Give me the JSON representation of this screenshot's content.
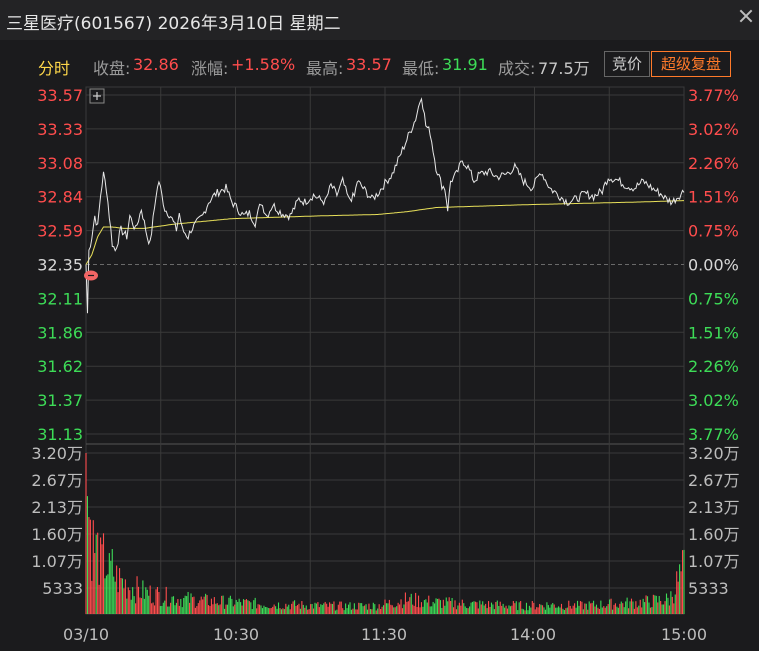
{
  "window": {
    "title": "三星医疗(601567) 2026年3月10日 星期二",
    "close_icon": "close-icon"
  },
  "infobar": {
    "mode_label": "分时",
    "close_label": "收盘:",
    "close_value": "32.86",
    "change_label": "涨幅:",
    "change_value": "+1.58%",
    "high_label": "最高:",
    "high_value": "33.57",
    "low_label": "最低:",
    "low_value": "31.91",
    "volume_label": "成交:",
    "volume_value": "77.5万",
    "auction_button": "竞价",
    "super_replay_button": "超级复盘"
  },
  "colors": {
    "up": "#ff4d4d",
    "down": "#3ddc57",
    "price_line": "#e8e8e8",
    "avg_line": "#e8e05a",
    "grid": "#3a3a3a"
  },
  "chart_data": {
    "type": "line",
    "reference_price": 32.35,
    "price_axis": {
      "range": [
        31.13,
        33.57
      ],
      "left_ticks": [
        "33.57",
        "33.33",
        "33.08",
        "32.84",
        "32.59",
        "32.35",
        "32.11",
        "31.86",
        "31.62",
        "31.37",
        "31.13"
      ],
      "right_ticks": [
        "3.77%",
        "3.02%",
        "2.26%",
        "1.51%",
        "0.75%",
        "0.00%",
        "0.75%",
        "1.51%",
        "2.26%",
        "3.02%",
        "3.77%"
      ]
    },
    "volume_axis": {
      "range": [
        0,
        32000
      ],
      "ticks": [
        "3.20万",
        "2.67万",
        "2.13万",
        "1.60万",
        "1.07万",
        "5333"
      ]
    },
    "time_labels": [
      "03/10",
      "10:30",
      "11:30",
      "14:00",
      "15:00"
    ],
    "price_keypoints": [
      [
        0,
        32.35
      ],
      [
        1,
        32.0
      ],
      [
        2,
        32.45
      ],
      [
        4,
        32.55
      ],
      [
        6,
        32.7
      ],
      [
        8,
        32.62
      ],
      [
        10,
        32.85
      ],
      [
        12,
        33.0
      ],
      [
        14,
        32.9
      ],
      [
        16,
        32.7
      ],
      [
        18,
        32.5
      ],
      [
        20,
        32.45
      ],
      [
        24,
        32.6
      ],
      [
        28,
        32.55
      ],
      [
        30,
        32.7
      ],
      [
        34,
        32.6
      ],
      [
        38,
        32.75
      ],
      [
        42,
        32.55
      ],
      [
        44,
        32.5
      ],
      [
        48,
        32.85
      ],
      [
        50,
        32.95
      ],
      [
        54,
        32.75
      ],
      [
        58,
        32.7
      ],
      [
        62,
        32.6
      ],
      [
        64,
        32.72
      ],
      [
        66,
        32.6
      ],
      [
        70,
        32.55
      ],
      [
        72,
        32.6
      ],
      [
        76,
        32.65
      ],
      [
        80,
        32.7
      ],
      [
        84,
        32.8
      ],
      [
        88,
        32.85
      ],
      [
        92,
        32.88
      ],
      [
        96,
        32.9
      ],
      [
        100,
        32.8
      ],
      [
        104,
        32.75
      ],
      [
        108,
        32.7
      ],
      [
        112,
        32.72
      ],
      [
        116,
        32.65
      ],
      [
        120,
        32.8
      ],
      [
        124,
        32.7
      ],
      [
        128,
        32.78
      ],
      [
        134,
        32.72
      ],
      [
        140,
        32.7
      ],
      [
        146,
        32.82
      ],
      [
        150,
        32.8
      ],
      [
        156,
        32.85
      ],
      [
        160,
        32.82
      ],
      [
        164,
        32.8
      ],
      [
        168,
        32.92
      ],
      [
        172,
        32.85
      ],
      [
        176,
        32.95
      ],
      [
        180,
        32.82
      ],
      [
        184,
        32.84
      ],
      [
        186,
        32.95
      ],
      [
        190,
        32.9
      ],
      [
        196,
        32.82
      ],
      [
        200,
        32.86
      ],
      [
        206,
        32.95
      ],
      [
        210,
        33.0
      ],
      [
        214,
        33.1
      ],
      [
        218,
        33.2
      ],
      [
        222,
        33.3
      ],
      [
        226,
        33.4
      ],
      [
        230,
        33.57
      ],
      [
        233,
        33.35
      ],
      [
        236,
        33.3
      ],
      [
        240,
        33.05
      ],
      [
        244,
        32.92
      ],
      [
        246,
        32.9
      ],
      [
        248,
        32.75
      ],
      [
        250,
        32.95
      ],
      [
        254,
        33.0
      ],
      [
        258,
        33.1
      ],
      [
        262,
        33.05
      ],
      [
        266,
        32.95
      ],
      [
        270,
        33.0
      ],
      [
        276,
        33.02
      ],
      [
        282,
        32.98
      ],
      [
        288,
        33.0
      ],
      [
        294,
        33.05
      ],
      [
        300,
        32.95
      ],
      [
        306,
        32.9
      ],
      [
        312,
        33.02
      ],
      [
        318,
        32.9
      ],
      [
        324,
        32.85
      ],
      [
        330,
        32.8
      ],
      [
        336,
        32.82
      ],
      [
        342,
        32.86
      ],
      [
        348,
        32.84
      ],
      [
        354,
        32.88
      ],
      [
        358,
        32.98
      ],
      [
        364,
        32.96
      ],
      [
        370,
        32.92
      ],
      [
        376,
        32.9
      ],
      [
        382,
        32.95
      ],
      [
        388,
        32.9
      ],
      [
        394,
        32.86
      ],
      [
        398,
        32.82
      ],
      [
        402,
        32.8
      ],
      [
        406,
        32.84
      ],
      [
        410,
        32.88
      ]
    ],
    "avg_keypoints": [
      [
        0,
        32.35
      ],
      [
        4,
        32.42
      ],
      [
        8,
        32.55
      ],
      [
        12,
        32.62
      ],
      [
        18,
        32.62
      ],
      [
        26,
        32.61
      ],
      [
        40,
        32.61
      ],
      [
        60,
        32.64
      ],
      [
        80,
        32.66
      ],
      [
        100,
        32.68
      ],
      [
        130,
        32.69
      ],
      [
        160,
        32.7
      ],
      [
        200,
        32.71
      ],
      [
        220,
        32.73
      ],
      [
        240,
        32.76
      ],
      [
        270,
        32.77
      ],
      [
        300,
        32.78
      ],
      [
        340,
        32.79
      ],
      [
        380,
        32.8
      ],
      [
        410,
        32.81
      ]
    ],
    "volume_keypoints": [
      [
        0,
        32000
      ],
      [
        2,
        25000
      ],
      [
        4,
        18000
      ],
      [
        6,
        16000
      ],
      [
        8,
        15000
      ],
      [
        10,
        12000
      ],
      [
        12,
        13000
      ],
      [
        14,
        12000
      ],
      [
        16,
        10000
      ],
      [
        18,
        11000
      ],
      [
        20,
        9000
      ],
      [
        24,
        8000
      ],
      [
        28,
        7000
      ],
      [
        34,
        6000
      ],
      [
        40,
        5200
      ],
      [
        50,
        4500
      ],
      [
        60,
        3800
      ],
      [
        80,
        3200
      ],
      [
        100,
        2800
      ],
      [
        120,
        2400
      ],
      [
        140,
        2200
      ],
      [
        160,
        2000
      ],
      [
        180,
        1900
      ],
      [
        200,
        2000
      ],
      [
        220,
        3500
      ],
      [
        240,
        2800
      ],
      [
        260,
        2400
      ],
      [
        280,
        2200
      ],
      [
        300,
        2000
      ],
      [
        320,
        2200
      ],
      [
        340,
        2000
      ],
      [
        360,
        2400
      ],
      [
        380,
        2800
      ],
      [
        400,
        3500
      ],
      [
        410,
        11000
      ]
    ],
    "total_minutes": 411
  }
}
